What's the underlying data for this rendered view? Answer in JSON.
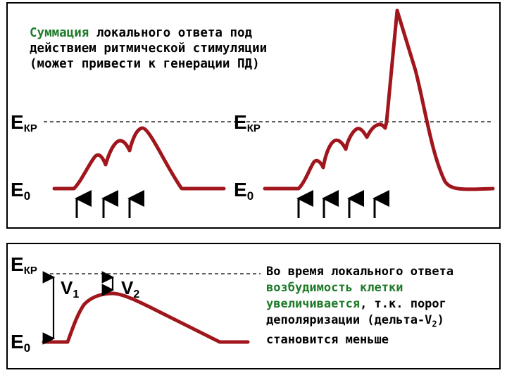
{
  "caption": {
    "highlight": "Суммация",
    "rest": " локального ответа под действием ритмической стимуляции (может привести к генерации ПД)"
  },
  "labels": {
    "ekr_letter": "E",
    "ekr_sub": "КР",
    "e0_letter": "E",
    "e0_sub": "0",
    "v_letter": "V",
    "v1_sub": "1",
    "v2_sub": "2"
  },
  "side_text": {
    "part1": "Во время локального ответа ",
    "part2": "возбудимость клетки увеличивается",
    "part3": ", т.к. порог деполяризации (дельта-V",
    "part4_sub": "2",
    "part5": ") становится меньше"
  },
  "colors": {
    "curve": "#a0161c",
    "highlight": "#1f7a2a"
  }
}
